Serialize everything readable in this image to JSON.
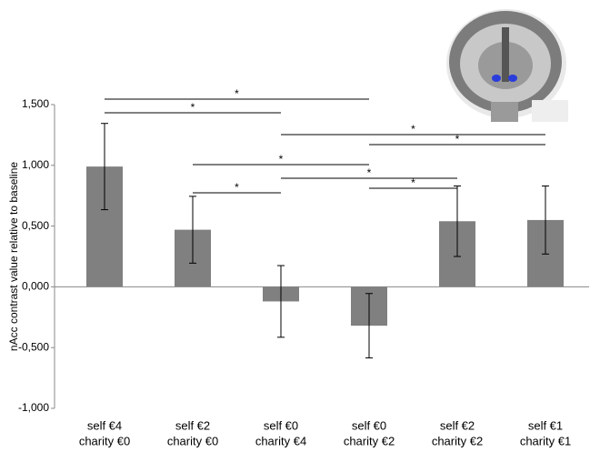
{
  "chart_data": {
    "type": "bar",
    "y_label": "nAcc contrast value relative to baseline",
    "categories": [
      [
        "self €4",
        "charity €0"
      ],
      [
        "self €2",
        "charity €0"
      ],
      [
        "self €0",
        "charity €4"
      ],
      [
        "self €0",
        "charity €2"
      ],
      [
        "self €2",
        "charity €2"
      ],
      [
        "self €1",
        "charity €1"
      ]
    ],
    "values": [
      0.99,
      0.47,
      -0.12,
      -0.32,
      0.54,
      0.55
    ],
    "errors": [
      0.355,
      0.275,
      0.295,
      0.265,
      0.29,
      0.28
    ],
    "color": "#808080",
    "ylim": [
      -1,
      1.5
    ],
    "yticks": [
      {
        "value": -1,
        "label": "-1,000"
      },
      {
        "value": -0.5,
        "label": "-0,500"
      },
      {
        "value": 0,
        "label": "0,000"
      },
      {
        "value": 0.5,
        "label": "0,500"
      },
      {
        "value": 1,
        "label": "1,000"
      },
      {
        "value": 1.5,
        "label": "1,500"
      }
    ],
    "comparisons": [
      {
        "from": 0,
        "to": 3,
        "label": "*"
      },
      {
        "from": 0,
        "to": 2,
        "label": "*"
      },
      {
        "from": 2,
        "to": 5,
        "label": "*"
      },
      {
        "from": 3,
        "to": 5,
        "label": "*"
      },
      {
        "from": 1,
        "to": 3,
        "label": "*"
      },
      {
        "from": 2,
        "to": 4,
        "label": "*"
      },
      {
        "from": 1,
        "to": 2,
        "label": "*"
      },
      {
        "from": 3,
        "to": 4,
        "label": "*"
      }
    ]
  }
}
